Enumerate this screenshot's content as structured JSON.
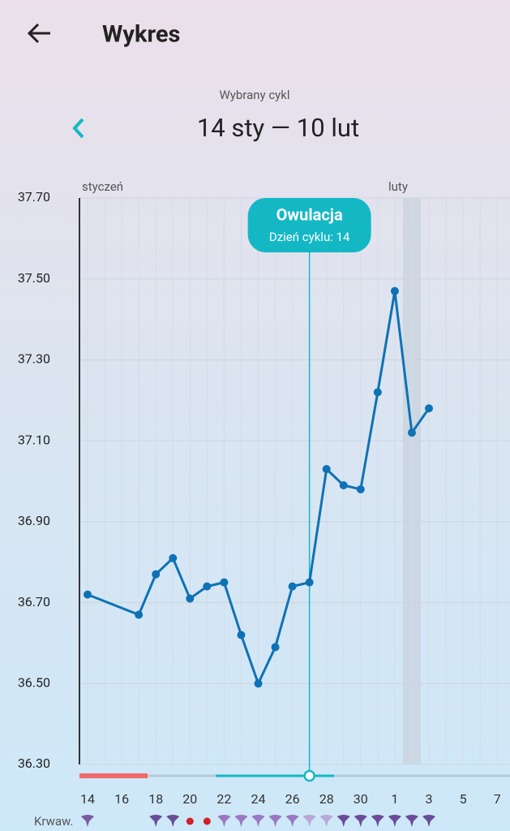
{
  "header": {
    "title": "Wykres"
  },
  "cycle": {
    "label": "Wybrany cykl",
    "range": "14 sty — 10 lut"
  },
  "chart_data": {
    "type": "line",
    "categories": [
      "14",
      null,
      "16",
      null,
      "18",
      null,
      "20",
      null,
      "22",
      null,
      "24",
      null,
      "26",
      null,
      "28",
      null,
      "30",
      null,
      "1",
      null,
      "3",
      null,
      "5",
      null,
      "7"
    ],
    "values": [
      36.72,
      null,
      null,
      36.67,
      36.77,
      36.81,
      36.71,
      36.74,
      36.75,
      36.62,
      36.5,
      36.59,
      36.74,
      36.75,
      37.03,
      36.99,
      36.98,
      37.22,
      37.47,
      37.12,
      37.18,
      null,
      null,
      null,
      null
    ],
    "color": "#0e72b5",
    "connect_gaps": true,
    "ylim": [
      36.3,
      37.7
    ],
    "yticks": [
      {
        "value": 36.3,
        "label": "36.30"
      },
      {
        "value": 36.5,
        "label": "36.50"
      },
      {
        "value": 36.7,
        "label": "36.70"
      },
      {
        "value": 36.9,
        "label": "36.90"
      },
      {
        "value": 37.1,
        "label": "37.10"
      },
      {
        "value": 37.3,
        "label": "37.30"
      },
      {
        "value": 37.5,
        "label": "37.50"
      },
      {
        "value": 37.7,
        "label": "37.70"
      }
    ],
    "grid": true,
    "month_labels": [
      "styczeń",
      "luty"
    ],
    "annotation": {
      "title": "Owulacja",
      "text": "Dzień cyklu: 14"
    },
    "row_label": "Krwaw."
  }
}
